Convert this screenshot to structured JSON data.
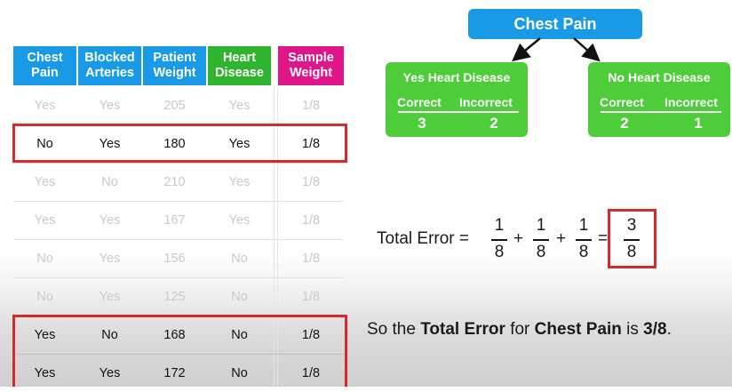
{
  "table": {
    "headers": [
      {
        "label": "Chest\nPain",
        "color": "#199ae6"
      },
      {
        "label": "Blocked\nArteries",
        "color": "#199ae6"
      },
      {
        "label": "Patient\nWeight",
        "color": "#199ae6"
      },
      {
        "label": "Heart\nDisease",
        "color": "#2fb42f"
      },
      {
        "label": "Sample\nWeight",
        "color": "#e0158a"
      }
    ],
    "rows": [
      {
        "cells": [
          "Yes",
          "Yes",
          "205",
          "Yes",
          "1/8"
        ],
        "highlighted": false,
        "dimmed": true
      },
      {
        "cells": [
          "No",
          "Yes",
          "180",
          "Yes",
          "1/8"
        ],
        "highlighted": true,
        "dimmed": false
      },
      {
        "cells": [
          "Yes",
          "No",
          "210",
          "Yes",
          "1/8"
        ],
        "highlighted": false,
        "dimmed": true
      },
      {
        "cells": [
          "Yes",
          "Yes",
          "167",
          "Yes",
          "1/8"
        ],
        "highlighted": false,
        "dimmed": true
      },
      {
        "cells": [
          "No",
          "Yes",
          "156",
          "No",
          "1/8"
        ],
        "highlighted": false,
        "dimmed": true
      },
      {
        "cells": [
          "No",
          "Yes",
          "125",
          "No",
          "1/8"
        ],
        "highlighted": false,
        "dimmed": true
      },
      {
        "cells": [
          "Yes",
          "No",
          "168",
          "No",
          "1/8"
        ],
        "highlighted": true,
        "dimmed": false
      },
      {
        "cells": [
          "Yes",
          "Yes",
          "172",
          "No",
          "1/8"
        ],
        "highlighted": true,
        "dimmed": false
      }
    ]
  },
  "tree": {
    "root": "Chest Pain",
    "leaves": [
      {
        "title": "Yes Heart Disease",
        "correct_label": "Correct",
        "incorrect_label": "Incorrect",
        "correct": "3",
        "incorrect": "2"
      },
      {
        "title": "No Heart Disease",
        "correct_label": "Correct",
        "incorrect_label": "Incorrect",
        "correct": "2",
        "incorrect": "1"
      }
    ],
    "colors": {
      "root": "#199ae6",
      "leaf": "#4ecc3a"
    }
  },
  "equation": {
    "label": "Total Error =",
    "terms": [
      {
        "num": "1",
        "den": "8"
      },
      {
        "num": "1",
        "den": "8"
      },
      {
        "num": "1",
        "den": "8"
      }
    ],
    "plus": "+",
    "equals": "=",
    "result": {
      "num": "3",
      "den": "8"
    }
  },
  "summary": {
    "prefix": "So the ",
    "bold1": "Total Error",
    "middle": " for ",
    "bold2": "Chest Pain",
    "middle2": " is ",
    "bold3": "3/8",
    "suffix": "."
  },
  "highlight_color": "#d42a2a"
}
